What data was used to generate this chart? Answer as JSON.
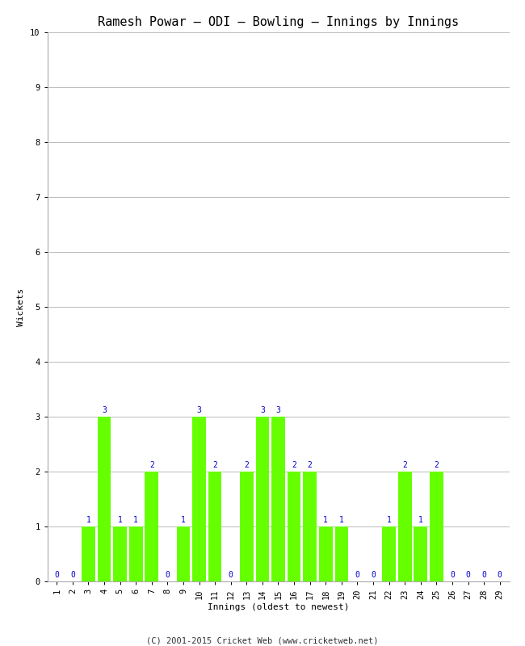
{
  "title": "Ramesh Powar – ODI – Bowling – Innings by Innings",
  "xlabel": "Innings (oldest to newest)",
  "ylabel": "Wickets",
  "innings": [
    1,
    2,
    3,
    4,
    5,
    6,
    7,
    8,
    9,
    10,
    11,
    12,
    13,
    14,
    15,
    16,
    17,
    18,
    19,
    20,
    21,
    22,
    23,
    24,
    25,
    26,
    27,
    28,
    29
  ],
  "wickets": [
    0,
    0,
    1,
    3,
    1,
    1,
    2,
    0,
    1,
    3,
    2,
    0,
    2,
    3,
    3,
    2,
    2,
    1,
    1,
    0,
    0,
    1,
    2,
    1,
    2,
    0,
    0,
    0,
    0
  ],
  "bar_color": "#66ff00",
  "label_color": "#0000cc",
  "ylim": [
    0,
    10
  ],
  "yticks": [
    0,
    1,
    2,
    3,
    4,
    5,
    6,
    7,
    8,
    9,
    10
  ],
  "background_color": "#ffffff",
  "grid_color": "#bbbbbb",
  "title_fontsize": 11,
  "axis_label_fontsize": 8,
  "tick_fontsize": 7.5,
  "bar_label_fontsize": 7,
  "footer": "(C) 2001-2015 Cricket Web (www.cricketweb.net)",
  "footer_fontsize": 7.5
}
